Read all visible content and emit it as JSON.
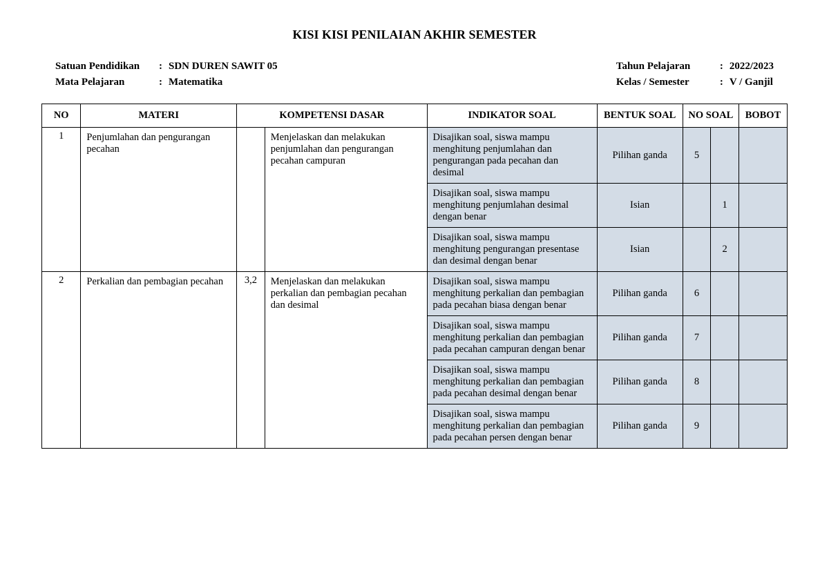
{
  "title": "KISI KISI PENILAIAN AKHIR SEMESTER",
  "meta": {
    "left": [
      {
        "label": "Satuan Pendidikan",
        "value": "SDN DUREN SAWIT 05"
      },
      {
        "label": "Mata Pelajaran",
        "value": "Matematika"
      }
    ],
    "right": [
      {
        "label": "Tahun Pelajaran",
        "value": "2022/2023"
      },
      {
        "label": "Kelas / Semester",
        "value": "V / Ganjil"
      }
    ]
  },
  "columns": {
    "no": "NO",
    "materi": "MATERI",
    "kd": "KOMPETENSI DASAR",
    "indikator": "INDIKATOR SOAL",
    "bentuk": "BENTUK SOAL",
    "nosoal": "NO SOAL",
    "bobot": "BOBOT"
  },
  "colors": {
    "shade": "#d3dce6",
    "border": "#000000",
    "background": "#ffffff"
  },
  "rows": [
    {
      "no": "1",
      "materi": "Penjumlahan dan pengurangan pecahan",
      "kd_num": "",
      "kd": "Menjelaskan dan melakukan penjumlahan dan pengurangan pecahan campuran",
      "items": [
        {
          "indikator": "Disajikan soal, siswa mampu menghitung penjumlahan dan pengurangan pada pecahan dan desimal",
          "bentuk": "Pilihan ganda",
          "nosoal1": "5",
          "nosoal2": "",
          "bobot": ""
        },
        {
          "indikator": "Disajikan soal, siswa mampu menghitung penjumlahan desimal dengan benar",
          "bentuk": "Isian",
          "nosoal1": "",
          "nosoal2": "1",
          "bobot": ""
        },
        {
          "indikator": "Disajikan soal, siswa mampu menghitung  pengurangan presentase dan desimal dengan benar",
          "bentuk": "Isian",
          "nosoal1": "",
          "nosoal2": "2",
          "bobot": ""
        }
      ]
    },
    {
      "no": "2",
      "materi": "Perkalian dan pembagian pecahan",
      "kd_num": "3,2",
      "kd": "Menjelaskan  dan melakukan perkalian dan pembagian pecahan dan desimal",
      "items": [
        {
          "indikator": "Disajikan soal, siswa mampu menghitung perkalian dan pembagian pada pecahan biasa dengan benar",
          "bentuk": "Pilihan ganda",
          "nosoal1": "6",
          "nosoal2": "",
          "bobot": ""
        },
        {
          "indikator": "Disajikan soal, siswa mampu menghitung perkalian dan pembagian pada pecahan campuran dengan benar",
          "bentuk": "Pilihan ganda",
          "nosoal1": "7",
          "nosoal2": "",
          "bobot": ""
        },
        {
          "indikator": "Disajikan soal, siswa mampu menghitung perkalian dan pembagian pada pecahan desimal dengan benar",
          "bentuk": "Pilihan ganda",
          "nosoal1": "8",
          "nosoal2": "",
          "bobot": ""
        },
        {
          "indikator": "Disajikan soal, siswa mampu menghitung perkalian dan pembagian pada pecahan persen dengan benar",
          "bentuk": "Pilihan ganda",
          "nosoal1": "9",
          "nosoal2": "",
          "bobot": ""
        }
      ]
    }
  ]
}
